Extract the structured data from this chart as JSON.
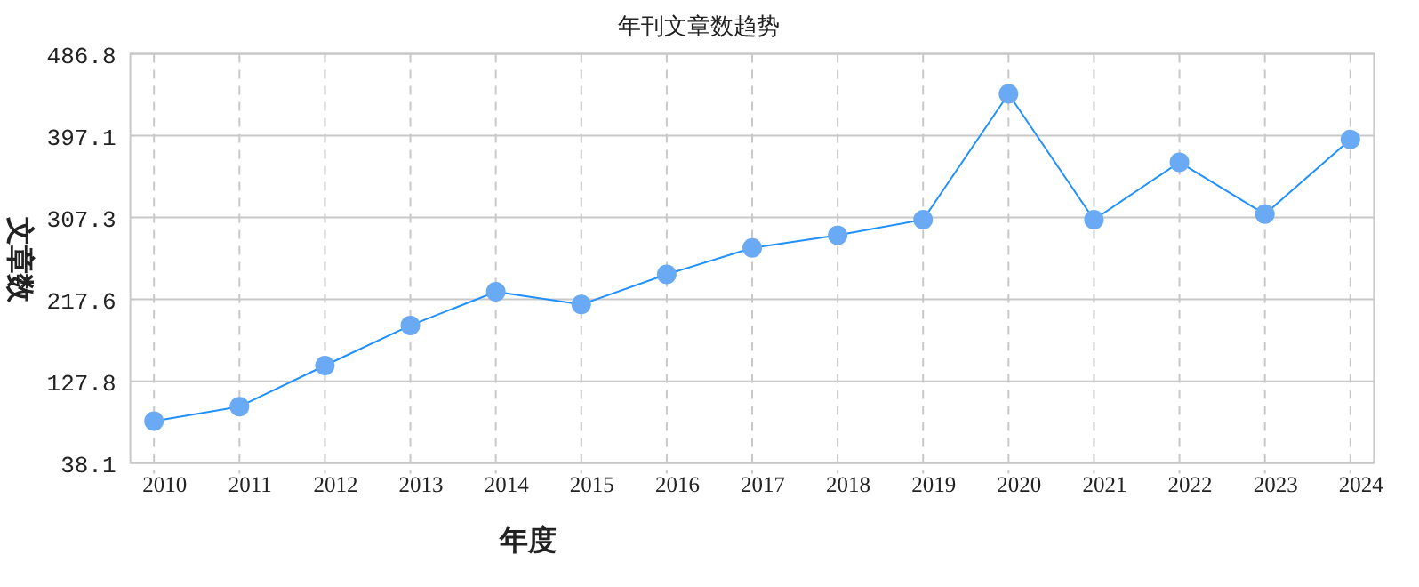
{
  "chart_data": {
    "type": "line",
    "title": "年刊文章数趋势",
    "xlabel": "年度",
    "ylabel": "文章数",
    "categories": [
      "2010",
      "2011",
      "2012",
      "2013",
      "2014",
      "2015",
      "2016",
      "2017",
      "2018",
      "2019",
      "2020",
      "2021",
      "2022",
      "2023",
      "2024"
    ],
    "series": [
      {
        "color": "#1e90ff",
        "values": [
          84,
          100,
          145,
          189,
          226,
          212,
          245,
          274,
          288,
          305,
          443,
          305,
          368,
          311,
          393
        ]
      }
    ],
    "ylim": [
      38.1,
      486.8
    ],
    "yticks": [
      38.1,
      127.8,
      217.6,
      307.3,
      397.1,
      486.8
    ],
    "grid": true,
    "marker": "circle",
    "line_style": "solid"
  }
}
